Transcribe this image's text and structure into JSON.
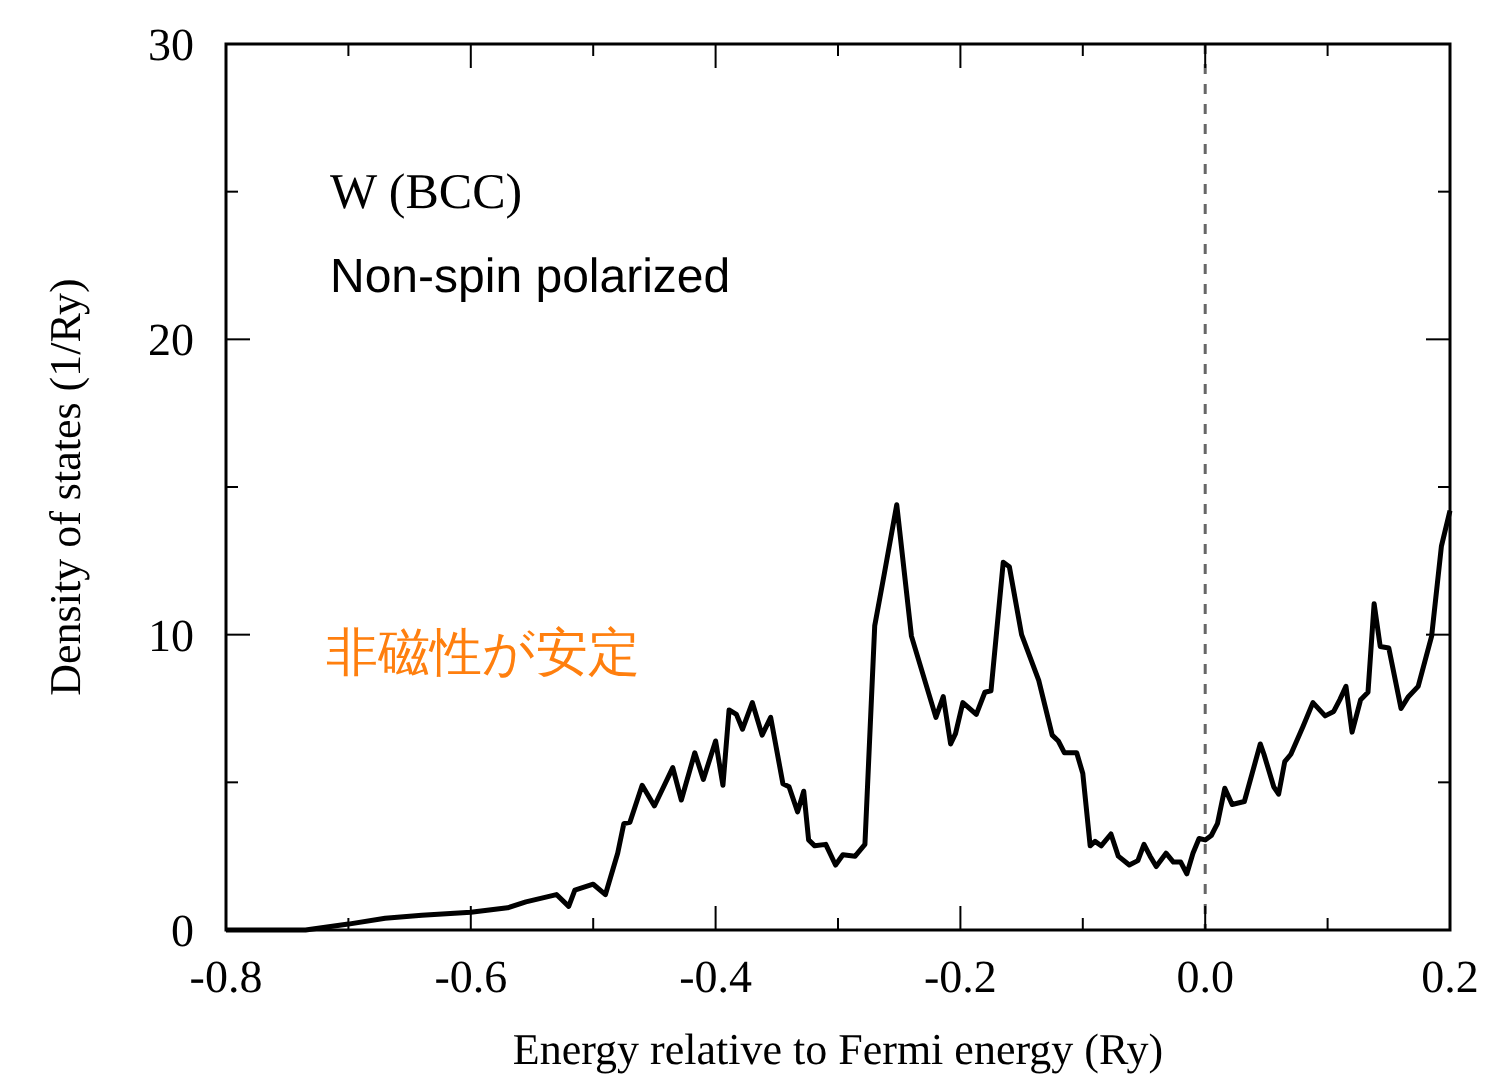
{
  "chart_data": {
    "type": "line",
    "xlabel": "Energy relative to Fermi energy (Ry)",
    "ylabel": "Density of states (1/Ry)",
    "annotations": [
      "W (BCC)",
      "Non-spin polarized",
      "非磁性が安定"
    ],
    "xlim": [
      -0.8,
      0.2
    ],
    "ylim": [
      0,
      30
    ],
    "xticks": [
      -0.8,
      -0.6,
      -0.4,
      -0.2,
      {
        "value": 0.0,
        "label": "0.0"
      },
      0.2
    ],
    "yticks": [
      0,
      10,
      20,
      30
    ],
    "ref_lines": [
      {
        "axis": "x",
        "value": 0,
        "color": "#666666",
        "line_style": "dashed"
      }
    ],
    "marker": "none",
    "line_style": "solid",
    "series": [
      {
        "color": "#000000",
        "x": [
          -0.8,
          -0.735,
          -0.7,
          -0.67,
          -0.64,
          -0.6,
          -0.57,
          -0.555,
          -0.53,
          -0.52,
          -0.515,
          -0.5,
          -0.49,
          -0.48,
          -0.475,
          -0.47,
          -0.46,
          -0.45,
          -0.435,
          -0.428,
          -0.417,
          -0.41,
          -0.4,
          -0.394,
          -0.389,
          -0.383,
          -0.378,
          -0.37,
          -0.362,
          -0.355,
          -0.345,
          -0.34,
          -0.333,
          -0.328,
          -0.324,
          -0.319,
          -0.31,
          -0.302,
          -0.296,
          -0.286,
          -0.278,
          -0.27,
          -0.262,
          -0.252,
          -0.24,
          -0.22,
          -0.214,
          -0.208,
          -0.204,
          -0.198,
          -0.187,
          -0.18,
          -0.175,
          -0.165,
          -0.16,
          -0.15,
          -0.136,
          -0.125,
          -0.12,
          -0.115,
          -0.105,
          -0.1,
          -0.094,
          -0.09,
          -0.085,
          -0.077,
          -0.071,
          -0.062,
          -0.055,
          -0.05,
          -0.045,
          -0.04,
          -0.032,
          -0.026,
          -0.02,
          -0.015,
          -0.01,
          -0.005,
          0.0,
          0.005,
          0.01,
          0.016,
          0.022,
          0.032,
          0.045,
          0.048,
          0.056,
          0.06,
          0.065,
          0.07,
          0.08,
          0.088,
          0.098,
          0.105,
          0.11,
          0.115,
          0.12,
          0.127,
          0.133,
          0.138,
          0.143,
          0.15,
          0.16,
          0.166,
          0.174,
          0.185,
          0.193,
          0.2
        ],
        "values": [
          0,
          0,
          0.2,
          0.4,
          0.5,
          0.6,
          0.75,
          0.95,
          1.2,
          0.8,
          1.35,
          1.55,
          1.2,
          2.6,
          3.6,
          3.65,
          4.9,
          4.2,
          5.5,
          4.4,
          6.0,
          5.1,
          6.4,
          4.9,
          7.45,
          7.3,
          6.8,
          7.7,
          6.6,
          7.2,
          4.95,
          4.85,
          4.0,
          4.7,
          3.05,
          2.85,
          2.9,
          2.2,
          2.55,
          2.5,
          2.9,
          10.3,
          12.1,
          14.4,
          9.95,
          7.2,
          7.9,
          6.3,
          6.65,
          7.7,
          7.3,
          8.05,
          8.1,
          12.45,
          12.3,
          10.0,
          8.45,
          6.6,
          6.4,
          6.0,
          6.0,
          5.3,
          2.85,
          3.0,
          2.85,
          3.25,
          2.5,
          2.2,
          2.35,
          2.9,
          2.5,
          2.15,
          2.6,
          2.3,
          2.3,
          1.9,
          2.6,
          3.1,
          3.05,
          3.2,
          3.6,
          4.8,
          4.25,
          4.35,
          6.3,
          5.95,
          4.85,
          4.6,
          5.7,
          5.95,
          6.9,
          7.7,
          7.25,
          7.4,
          7.8,
          8.25,
          6.7,
          7.8,
          8.05,
          11.05,
          9.6,
          9.55,
          7.5,
          7.9,
          8.25,
          9.95,
          13.0,
          14.2
        ]
      }
    ]
  }
}
